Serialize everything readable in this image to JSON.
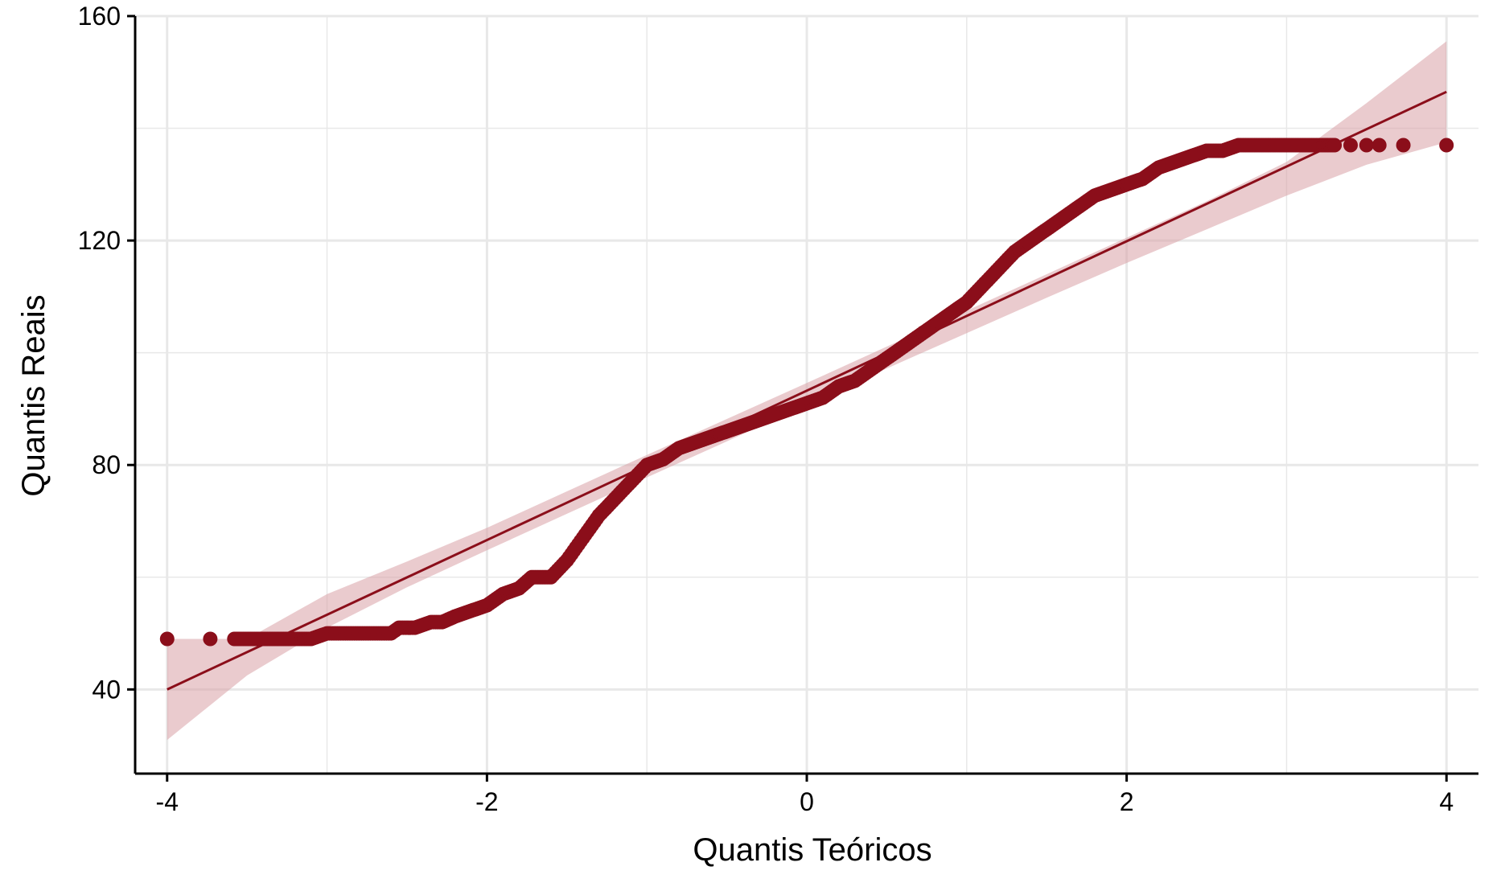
{
  "chart_data": {
    "type": "scatter",
    "subtype": "qq-plot",
    "title": "",
    "xlabel": "Quantis Teóricos",
    "ylabel": "Quantis Reais",
    "xlim": [
      -4.2,
      4.2
    ],
    "ylim": [
      25,
      160
    ],
    "xticks": [
      -4,
      -2,
      0,
      2,
      4
    ],
    "xtick_labels": [
      "-4",
      "-2",
      "0",
      "2",
      "4"
    ],
    "yticks": [
      40,
      80,
      120,
      160
    ],
    "ytick_labels": [
      "40",
      "80",
      "120",
      "160"
    ],
    "grid": true,
    "legend": "none",
    "colors": {
      "points": "#8b0e1a",
      "line": "#8b0e1a",
      "band": "#d9a0a6",
      "grid": "#e8e8e8",
      "axis": "#000000"
    },
    "reference_line": {
      "x": [
        -4,
        4
      ],
      "y": [
        40,
        146.5
      ]
    },
    "confidence_band": {
      "x": [
        -4,
        -3.5,
        -3,
        -2.5,
        -2,
        -1.5,
        -1,
        -0.5,
        0,
        0.5,
        1,
        1.5,
        2,
        2.5,
        3,
        3.5,
        4
      ],
      "lower": [
        31,
        42.5,
        51,
        58.2,
        64.8,
        71.3,
        77.8,
        84.2,
        90.8,
        97.2,
        103.5,
        109.8,
        116,
        122,
        128,
        133.5,
        137.5
      ],
      "upper": [
        49,
        49,
        57,
        62.8,
        68.8,
        75.3,
        81.8,
        88.2,
        94.6,
        101.1,
        107.5,
        114,
        120.5,
        127,
        134,
        144.5,
        155.5
      ]
    },
    "series": [
      {
        "x": [
          -4,
          -3.73,
          -3.58,
          -3.48,
          -3.4,
          -3.3,
          -3.2,
          -3.1,
          -3.0,
          -2.9,
          -2.8,
          -2.7,
          -2.6,
          -2.55,
          -2.45,
          -2.35,
          -2.28,
          -2.2,
          -2.1,
          -2.0,
          -1.9,
          -1.8,
          -1.72,
          -1.6,
          -1.5,
          -1.4,
          -1.3,
          -1.2,
          -1.1,
          -1.0,
          -0.9,
          -0.8,
          -0.7,
          -0.6,
          -0.5,
          -0.4,
          -0.3,
          -0.2,
          -0.1,
          0.0,
          0.1,
          0.2,
          0.3,
          0.4,
          0.5,
          0.6,
          0.7,
          0.8,
          0.9,
          1.0,
          1.1,
          1.2,
          1.3,
          1.4,
          1.5,
          1.6,
          1.7,
          1.8,
          1.9,
          2.0,
          2.1,
          2.2,
          2.3,
          2.4,
          2.5,
          2.6,
          2.7,
          2.8,
          2.9,
          3.0,
          3.1,
          3.2,
          3.3,
          3.4,
          3.5,
          3.58,
          3.73,
          4.0
        ],
        "y": [
          49,
          49,
          49,
          49,
          49,
          49,
          49,
          49,
          50,
          50,
          50,
          50,
          50,
          51,
          51,
          52,
          52,
          53,
          54,
          55,
          57,
          58,
          60,
          60,
          63,
          67,
          71,
          74,
          77,
          80,
          81,
          83,
          84,
          85,
          86,
          87,
          88,
          89,
          90,
          91,
          92,
          94,
          95,
          97,
          99,
          101,
          103,
          105,
          107,
          109,
          112,
          115,
          118,
          120,
          122,
          124,
          126,
          128,
          129,
          130,
          131,
          133,
          134,
          135,
          136,
          136,
          137,
          137,
          137,
          137,
          137,
          137,
          137,
          137,
          137,
          137,
          137,
          137
        ]
      }
    ]
  }
}
